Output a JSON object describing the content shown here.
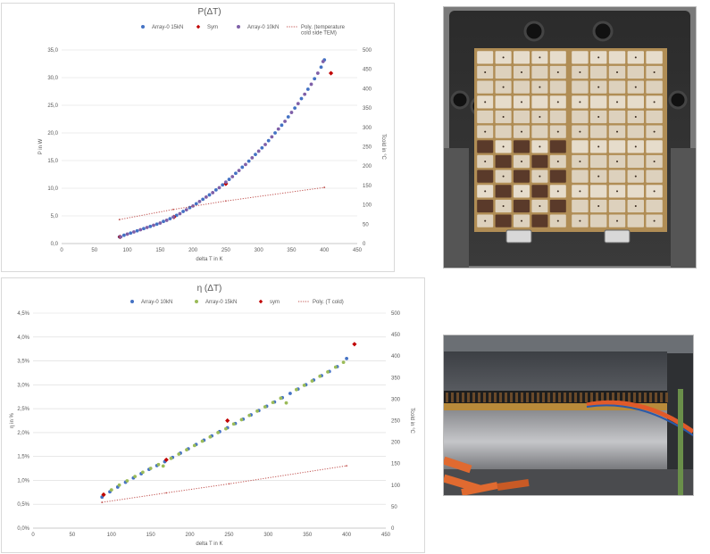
{
  "colors": {
    "series_blue": "#4472c4",
    "series_purple": "#7f60a8",
    "series_green": "#9bbb59",
    "series_red": "#c00000",
    "poly_red": "#c0504d",
    "gridline": "#d9d9d9",
    "text": "#595959"
  },
  "chart_data": [
    {
      "type": "scatter",
      "title": "P(ΔT)",
      "xlabel": "delta T in K",
      "ylabel": "P in W",
      "y2label": "Tcold in °C",
      "xlim": [
        0,
        450
      ],
      "ylim": [
        0,
        35
      ],
      "y2lim": [
        0,
        500
      ],
      "x_ticks": [
        "0",
        "50",
        "100",
        "150",
        "200",
        "250",
        "300",
        "350",
        "400",
        "450"
      ],
      "y_ticks": [
        "0,0",
        "5,0",
        "10,0",
        "15,0",
        "20,0",
        "25,0",
        "30,0",
        "35,0"
      ],
      "y2_ticks": [
        "0",
        "50",
        "100",
        "150",
        "200",
        "250",
        "300",
        "350",
        "400",
        "450",
        "500"
      ],
      "grid": true,
      "legend_position": "top",
      "legend": [
        "Array-0 15kN",
        "Sym",
        "Array-0 10kN",
        "Poly. (temperature cold side TEM)"
      ],
      "series": [
        {
          "name": "Array-0 15kN",
          "marker": "circle",
          "color": "#4472c4",
          "axis": "left",
          "x": [
            88,
            95,
            105,
            115,
            125,
            135,
            145,
            155,
            165,
            175,
            185,
            195,
            205,
            215,
            225,
            235,
            245,
            255,
            265,
            275,
            285,
            295,
            305,
            315,
            325,
            335,
            345,
            355,
            365,
            375,
            385,
            395,
            400
          ],
          "y": [
            1.2,
            1.5,
            1.9,
            2.3,
            2.7,
            3.1,
            3.5,
            4.0,
            4.5,
            5.1,
            5.8,
            6.5,
            7.2,
            8.0,
            8.8,
            9.7,
            10.6,
            11.6,
            12.7,
            13.8,
            14.9,
            16.1,
            17.3,
            18.6,
            20.0,
            21.4,
            22.9,
            24.5,
            26.2,
            27.9,
            29.8,
            31.9,
            33.2
          ]
        },
        {
          "name": "Sym",
          "marker": "diamond",
          "color": "#c00000",
          "axis": "left",
          "x": [
            89,
            171,
            250,
            410
          ],
          "y": [
            1.2,
            4.8,
            10.8,
            30.8
          ]
        },
        {
          "name": "Array-0 10kN",
          "marker": "circle",
          "color": "#7f60a8",
          "axis": "left",
          "x": [
            90,
            100,
            110,
            120,
            130,
            140,
            150,
            160,
            170,
            180,
            190,
            200,
            210,
            220,
            230,
            240,
            250,
            260,
            270,
            280,
            290,
            300,
            310,
            320,
            330,
            340,
            350,
            360,
            370,
            380,
            390,
            398
          ],
          "y": [
            1.2,
            1.7,
            2.1,
            2.5,
            2.9,
            3.3,
            3.7,
            4.2,
            4.8,
            5.4,
            6.1,
            6.8,
            7.6,
            8.4,
            9.2,
            10.1,
            11.1,
            12.1,
            13.2,
            14.3,
            15.5,
            16.7,
            17.9,
            19.3,
            20.7,
            22.1,
            23.7,
            25.3,
            27.0,
            28.8,
            30.8,
            32.9
          ]
        },
        {
          "name": "Poly. (temperature cold side TEM)",
          "style": "dotted-trendline",
          "color": "#c0504d",
          "axis": "right",
          "x": [
            88,
            170,
            250,
            400
          ],
          "y": [
            62,
            88,
            110,
            145
          ]
        }
      ]
    },
    {
      "type": "scatter",
      "title": "η (ΔT)",
      "xlabel": "delta T in K",
      "ylabel": "η in %",
      "y2label": "Tcold in °C",
      "xlim": [
        0,
        450
      ],
      "ylim": [
        0,
        4.5
      ],
      "y2lim": [
        0,
        500
      ],
      "x_ticks": [
        "0",
        "50",
        "100",
        "150",
        "200",
        "250",
        "300",
        "350",
        "400",
        "450"
      ],
      "y_ticks": [
        "0,0%",
        "0,5%",
        "1,0%",
        "1,5%",
        "2,0%",
        "2,5%",
        "3,0%",
        "3,5%",
        "4,0%",
        "4,5%"
      ],
      "y2_ticks": [
        "0",
        "50",
        "100",
        "150",
        "200",
        "250",
        "300",
        "350",
        "400",
        "450",
        "500"
      ],
      "grid": true,
      "legend_position": "top",
      "legend": [
        "Array-0 10kN",
        "Array-0 15kN",
        "sym",
        "Poly. (T cold)"
      ],
      "series": [
        {
          "name": "Array-0 10kN",
          "marker": "circle",
          "color": "#4472c4",
          "axis": "left",
          "x": [
            88,
            98,
            108,
            118,
            128,
            138,
            148,
            158,
            168,
            178,
            188,
            198,
            208,
            218,
            228,
            238,
            248,
            258,
            268,
            278,
            288,
            298,
            308,
            318,
            328,
            338,
            348,
            358,
            368,
            378,
            388,
            400
          ],
          "y": [
            0.65,
            0.76,
            0.86,
            0.96,
            1.05,
            1.14,
            1.23,
            1.31,
            1.39,
            1.48,
            1.57,
            1.66,
            1.75,
            1.84,
            1.93,
            2.02,
            2.1,
            2.19,
            2.28,
            2.37,
            2.46,
            2.55,
            2.64,
            2.73,
            2.82,
            2.91,
            3.0,
            3.1,
            3.19,
            3.28,
            3.38,
            3.55
          ]
        },
        {
          "name": "Array-0 15kN",
          "marker": "circle",
          "color": "#9bbb59",
          "axis": "left",
          "x": [
            90,
            100,
            110,
            120,
            130,
            140,
            150,
            160,
            166,
            176,
            186,
            196,
            206,
            216,
            226,
            236,
            246,
            256,
            266,
            276,
            286,
            296,
            306,
            316,
            323,
            336,
            346,
            356,
            366,
            376,
            386,
            396
          ],
          "y": [
            0.7,
            0.8,
            0.9,
            0.99,
            1.08,
            1.17,
            1.25,
            1.33,
            1.3,
            1.46,
            1.55,
            1.64,
            1.73,
            1.82,
            1.91,
            2.0,
            2.08,
            2.18,
            2.27,
            2.36,
            2.45,
            2.54,
            2.63,
            2.72,
            2.62,
            2.9,
            2.99,
            3.08,
            3.18,
            3.27,
            3.37,
            3.47
          ]
        },
        {
          "name": "sym",
          "marker": "diamond",
          "color": "#c00000",
          "axis": "left",
          "x": [
            90,
            170,
            248,
            410
          ],
          "y": [
            0.7,
            1.43,
            2.25,
            3.85
          ]
        },
        {
          "name": "Poly. (T cold)",
          "style": "dotted-trendline",
          "color": "#c0504d",
          "axis": "right",
          "x": [
            88,
            170,
            250,
            400
          ],
          "y": [
            60,
            82,
            103,
            145
          ]
        }
      ]
    }
  ],
  "photos": {
    "module_icon": "thermoelectric-module-photo",
    "stack_icon": "heat-exchanger-stack-photo"
  }
}
